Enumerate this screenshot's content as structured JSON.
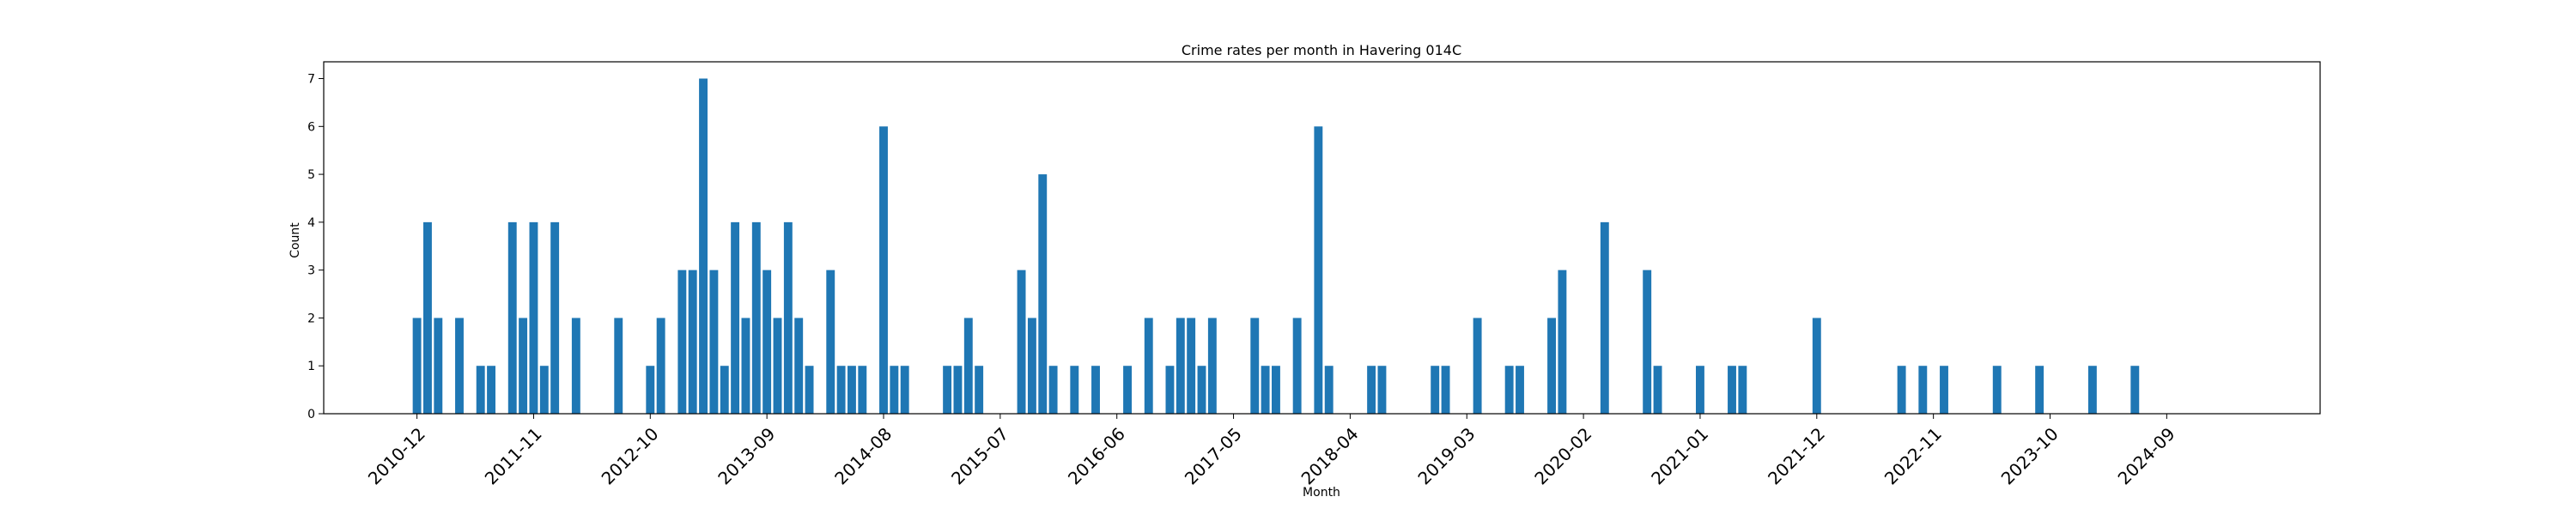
{
  "chart_data": {
    "type": "bar",
    "title": "Crime rates per month in Havering 014C",
    "xlabel": "Month",
    "ylabel": "Count",
    "ylim": [
      0,
      7.35
    ],
    "y_ticks": [
      0,
      1,
      2,
      3,
      4,
      5,
      6,
      7
    ],
    "x_ticks": [
      "2010-12",
      "2011-11",
      "2012-10",
      "2013-09",
      "2014-08",
      "2015-07",
      "2016-06",
      "2017-05",
      "2018-04",
      "2019-03",
      "2020-02",
      "2021-01",
      "2021-12",
      "2022-11",
      "2023-10",
      "2024-09"
    ],
    "categories": [
      "2010-12",
      "2011-01",
      "2011-02",
      "2011-04",
      "2011-06",
      "2011-07",
      "2011-09",
      "2011-10",
      "2011-11",
      "2011-12",
      "2012-01",
      "2012-03",
      "2012-07",
      "2012-10",
      "2012-11",
      "2013-01",
      "2013-02",
      "2013-03",
      "2013-04",
      "2013-05",
      "2013-06",
      "2013-07",
      "2013-08",
      "2013-09",
      "2013-10",
      "2013-11",
      "2013-12",
      "2014-01",
      "2014-03",
      "2014-04",
      "2014-05",
      "2014-06",
      "2014-08",
      "2014-09",
      "2014-10",
      "2015-02",
      "2015-03",
      "2015-04",
      "2015-05",
      "2015-09",
      "2015-10",
      "2015-11",
      "2015-12",
      "2016-02",
      "2016-04",
      "2016-07",
      "2016-09",
      "2016-11",
      "2016-12",
      "2017-01",
      "2017-02",
      "2017-03",
      "2017-07",
      "2017-08",
      "2017-09",
      "2017-11",
      "2018-01",
      "2018-02",
      "2018-06",
      "2018-07",
      "2018-12",
      "2019-01",
      "2019-04",
      "2019-07",
      "2019-08",
      "2019-11",
      "2019-12",
      "2020-04",
      "2020-08",
      "2020-09",
      "2021-01",
      "2021-04",
      "2021-05",
      "2021-12",
      "2022-08",
      "2022-10",
      "2022-12",
      "2023-05",
      "2023-09",
      "2024-02",
      "2024-06"
    ],
    "values": [
      2,
      4,
      2,
      2,
      1,
      1,
      4,
      2,
      4,
      1,
      4,
      2,
      2,
      1,
      2,
      3,
      3,
      7,
      3,
      1,
      4,
      2,
      4,
      3,
      2,
      4,
      2,
      1,
      3,
      1,
      1,
      1,
      6,
      1,
      1,
      1,
      1,
      2,
      1,
      3,
      2,
      5,
      1,
      1,
      1,
      1,
      2,
      1,
      2,
      2,
      1,
      2,
      2,
      1,
      1,
      2,
      6,
      1,
      1,
      1,
      1,
      1,
      2,
      1,
      1,
      2,
      3,
      4,
      3,
      1,
      1,
      1,
      1,
      2,
      1,
      1,
      1,
      1,
      1,
      1,
      1
    ],
    "bar_color": "#1f77b4",
    "grid": false,
    "legend": "none"
  }
}
